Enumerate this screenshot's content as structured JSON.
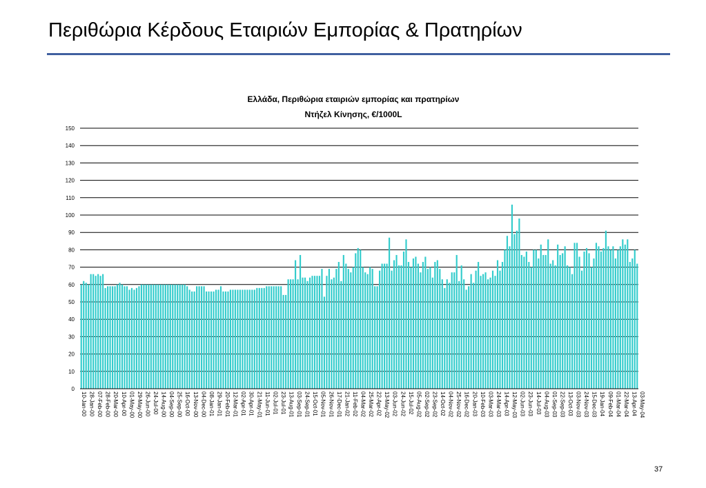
{
  "slide": {
    "title": "Περιθώρια Κέρδους Εταιριών Εμπορίας & Πρατηρίων",
    "page_number": "37",
    "accent_color": "#3f5f9f"
  },
  "chart_data": {
    "type": "bar",
    "title": "Ελλάδα, Περιθώρια εταιριών εμπορίας και πρατηρίων",
    "subtitle": "Ντήζελ Κίνησης, €/1000L",
    "xlabel": "",
    "ylabel": "",
    "ylim": [
      0,
      150
    ],
    "yticks": [
      0,
      10,
      20,
      30,
      40,
      50,
      60,
      70,
      80,
      90,
      100,
      110,
      120,
      130,
      140,
      150
    ],
    "grid": true,
    "legend": "none",
    "bar_color": "#33cccc",
    "x_tick_labels": [
      "10-Jan-00",
      "28-Jan-00",
      "07-Feb-00",
      "28-Feb-00",
      "20-Mar-00",
      "10-Apr-00",
      "01-May-00",
      "29-May-00",
      "26-Jun-00",
      "24-Jul-00",
      "14-Aug-00",
      "04-Sep-00",
      "25-Sep-00",
      "16-Oct-00",
      "13-Nov-00",
      "04-Dec-00",
      "08-Jan-01",
      "29-Jan-01",
      "20-Feb-01",
      "12-Mar-01",
      "02-Apr-01",
      "30-Apr-01",
      "21-May-01",
      "11-Jun-01",
      "02-Jul-01",
      "23-Jul-01",
      "13-Aug-01",
      "03-Sep-01",
      "24-Sep-01",
      "15-Oct-01",
      "05-Nov-01",
      "26-Nov-01",
      "17-Dec-01",
      "21-Jan-02",
      "11-Feb-02",
      "04-Mar-02",
      "25-Mar-02",
      "22-Apr-02",
      "13-May-02",
      "03-Jun-02",
      "24-Jun-02",
      "15-Jul-02",
      "05-Aug-02",
      "02-Sep-02",
      "23-Sep-02",
      "14-Oct-02",
      "04-Nov-02",
      "25-Nov-02",
      "16-Dec-02",
      "20-Jan-03",
      "10-Feb-03",
      "03-Mar-03",
      "24-Mar-03",
      "14-Apr-03",
      "12-May-03",
      "02-Jun-03",
      "23-Jun-03",
      "14-Jul-03",
      "04-Aug-03",
      "01-Sep-03",
      "22-Sep-03",
      "13-Oct-03",
      "03-Nov-03",
      "24-Nov-03",
      "15-Dec-03",
      "19-Jan-04",
      "09-Feb-04",
      "01-Mar-04",
      "22-Mar-04",
      "13-Apr-04",
      "03-May-04"
    ],
    "values": [
      60,
      62,
      61,
      60,
      66,
      66,
      65,
      66,
      65,
      66,
      58,
      59,
      59,
      59,
      59,
      60,
      61,
      60,
      59,
      59,
      57,
      58,
      57,
      58,
      59,
      60,
      60,
      60,
      60,
      60,
      60,
      60,
      60,
      60,
      60,
      60,
      60,
      60,
      60,
      60,
      60,
      60,
      60,
      60,
      59,
      57,
      56,
      56,
      59,
      59,
      59,
      59,
      56,
      56,
      56,
      56,
      57,
      57,
      59,
      56,
      56,
      56,
      57,
      57,
      57,
      57,
      57,
      57,
      57,
      57,
      57,
      57,
      57,
      58,
      58,
      58,
      58,
      59,
      59,
      59,
      59,
      59,
      59,
      59,
      54,
      54,
      63,
      63,
      63,
      74,
      63,
      77,
      64,
      64,
      62,
      64,
      65,
      65,
      65,
      65,
      69,
      53,
      65,
      69,
      63,
      64,
      69,
      73,
      62,
      77,
      72,
      69,
      67,
      70,
      78,
      81,
      80,
      70,
      67,
      66,
      70,
      69,
      59,
      59,
      68,
      72,
      72,
      72,
      87,
      68,
      74,
      77,
      71,
      71,
      79,
      86,
      73,
      70,
      75,
      76,
      72,
      67,
      73,
      76,
      69,
      70,
      64,
      73,
      74,
      69,
      63,
      58,
      63,
      61,
      67,
      67,
      77,
      62,
      71,
      63,
      57,
      59,
      66,
      61,
      68,
      73,
      65,
      66,
      67,
      63,
      64,
      68,
      65,
      74,
      68,
      73,
      80,
      88,
      82,
      106,
      89,
      91,
      98,
      77,
      76,
      79,
      73,
      70,
      80,
      80,
      75,
      83,
      77,
      77,
      86,
      72,
      74,
      71,
      83,
      77,
      78,
      82,
      71,
      70,
      66,
      84,
      84,
      76,
      68,
      79,
      81,
      78,
      70,
      75,
      84,
      82,
      79,
      81,
      91,
      82,
      80,
      82,
      75,
      80,
      82,
      86,
      83,
      86,
      73,
      75,
      80,
      72
    ]
  }
}
